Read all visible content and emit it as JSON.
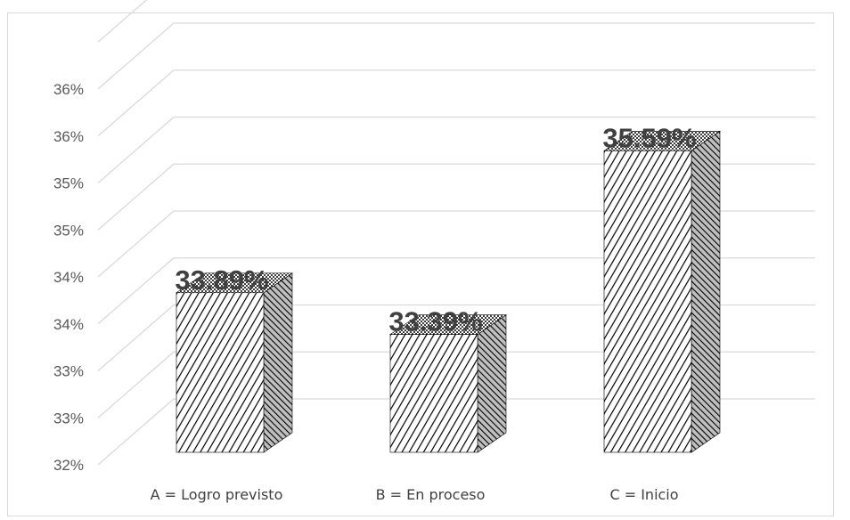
{
  "chart_data": {
    "type": "bar",
    "style": "3d-column",
    "categories": [
      "A = Logro previsto",
      "B = En proceso",
      "C = Inicio"
    ],
    "values": [
      33.89,
      33.39,
      35.59
    ],
    "data_labels": [
      "33.89%",
      "33.39%",
      "35.59%"
    ],
    "yticks": [
      "32%",
      "33%",
      "33%",
      "34%",
      "34%",
      "35%",
      "35%",
      "36%",
      "36%"
    ],
    "ylim": [
      32,
      36.5
    ],
    "grid": true,
    "legend": "none",
    "colors": {
      "grid": "#d9d9d9",
      "text": "#404040",
      "hatch": "#000000",
      "bar_fill": "#ffffff"
    }
  }
}
